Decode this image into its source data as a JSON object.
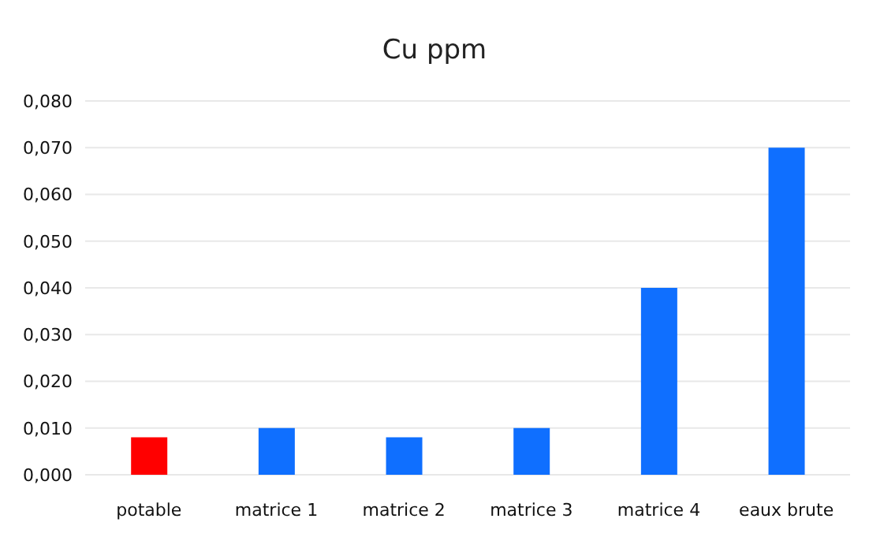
{
  "chart_data": {
    "type": "bar",
    "title": "Cu  ppm",
    "categories": [
      "potable",
      "matrice 1",
      "matrice 2",
      "matrice 3",
      "matrice 4",
      "eaux brute"
    ],
    "values": [
      0.008,
      0.01,
      0.008,
      0.01,
      0.04,
      0.07
    ],
    "colors": [
      "#ff0000",
      "#0f6fff",
      "#0f6fff",
      "#0f6fff",
      "#0f6fff",
      "#0f6fff"
    ],
    "ylim": [
      0,
      0.08
    ],
    "yticks": [
      {
        "value": 0,
        "label": "0,000"
      },
      {
        "value": 0.01,
        "label": "0,010"
      },
      {
        "value": 0.02,
        "label": "0,020"
      },
      {
        "value": 0.03,
        "label": "0,030"
      },
      {
        "value": 0.04,
        "label": "0,040"
      },
      {
        "value": 0.05,
        "label": "0,050"
      },
      {
        "value": 0.06,
        "label": "0,060"
      },
      {
        "value": 0.07,
        "label": "0,070"
      },
      {
        "value": 0.08,
        "label": "0,080"
      }
    ],
    "grid": "y"
  }
}
